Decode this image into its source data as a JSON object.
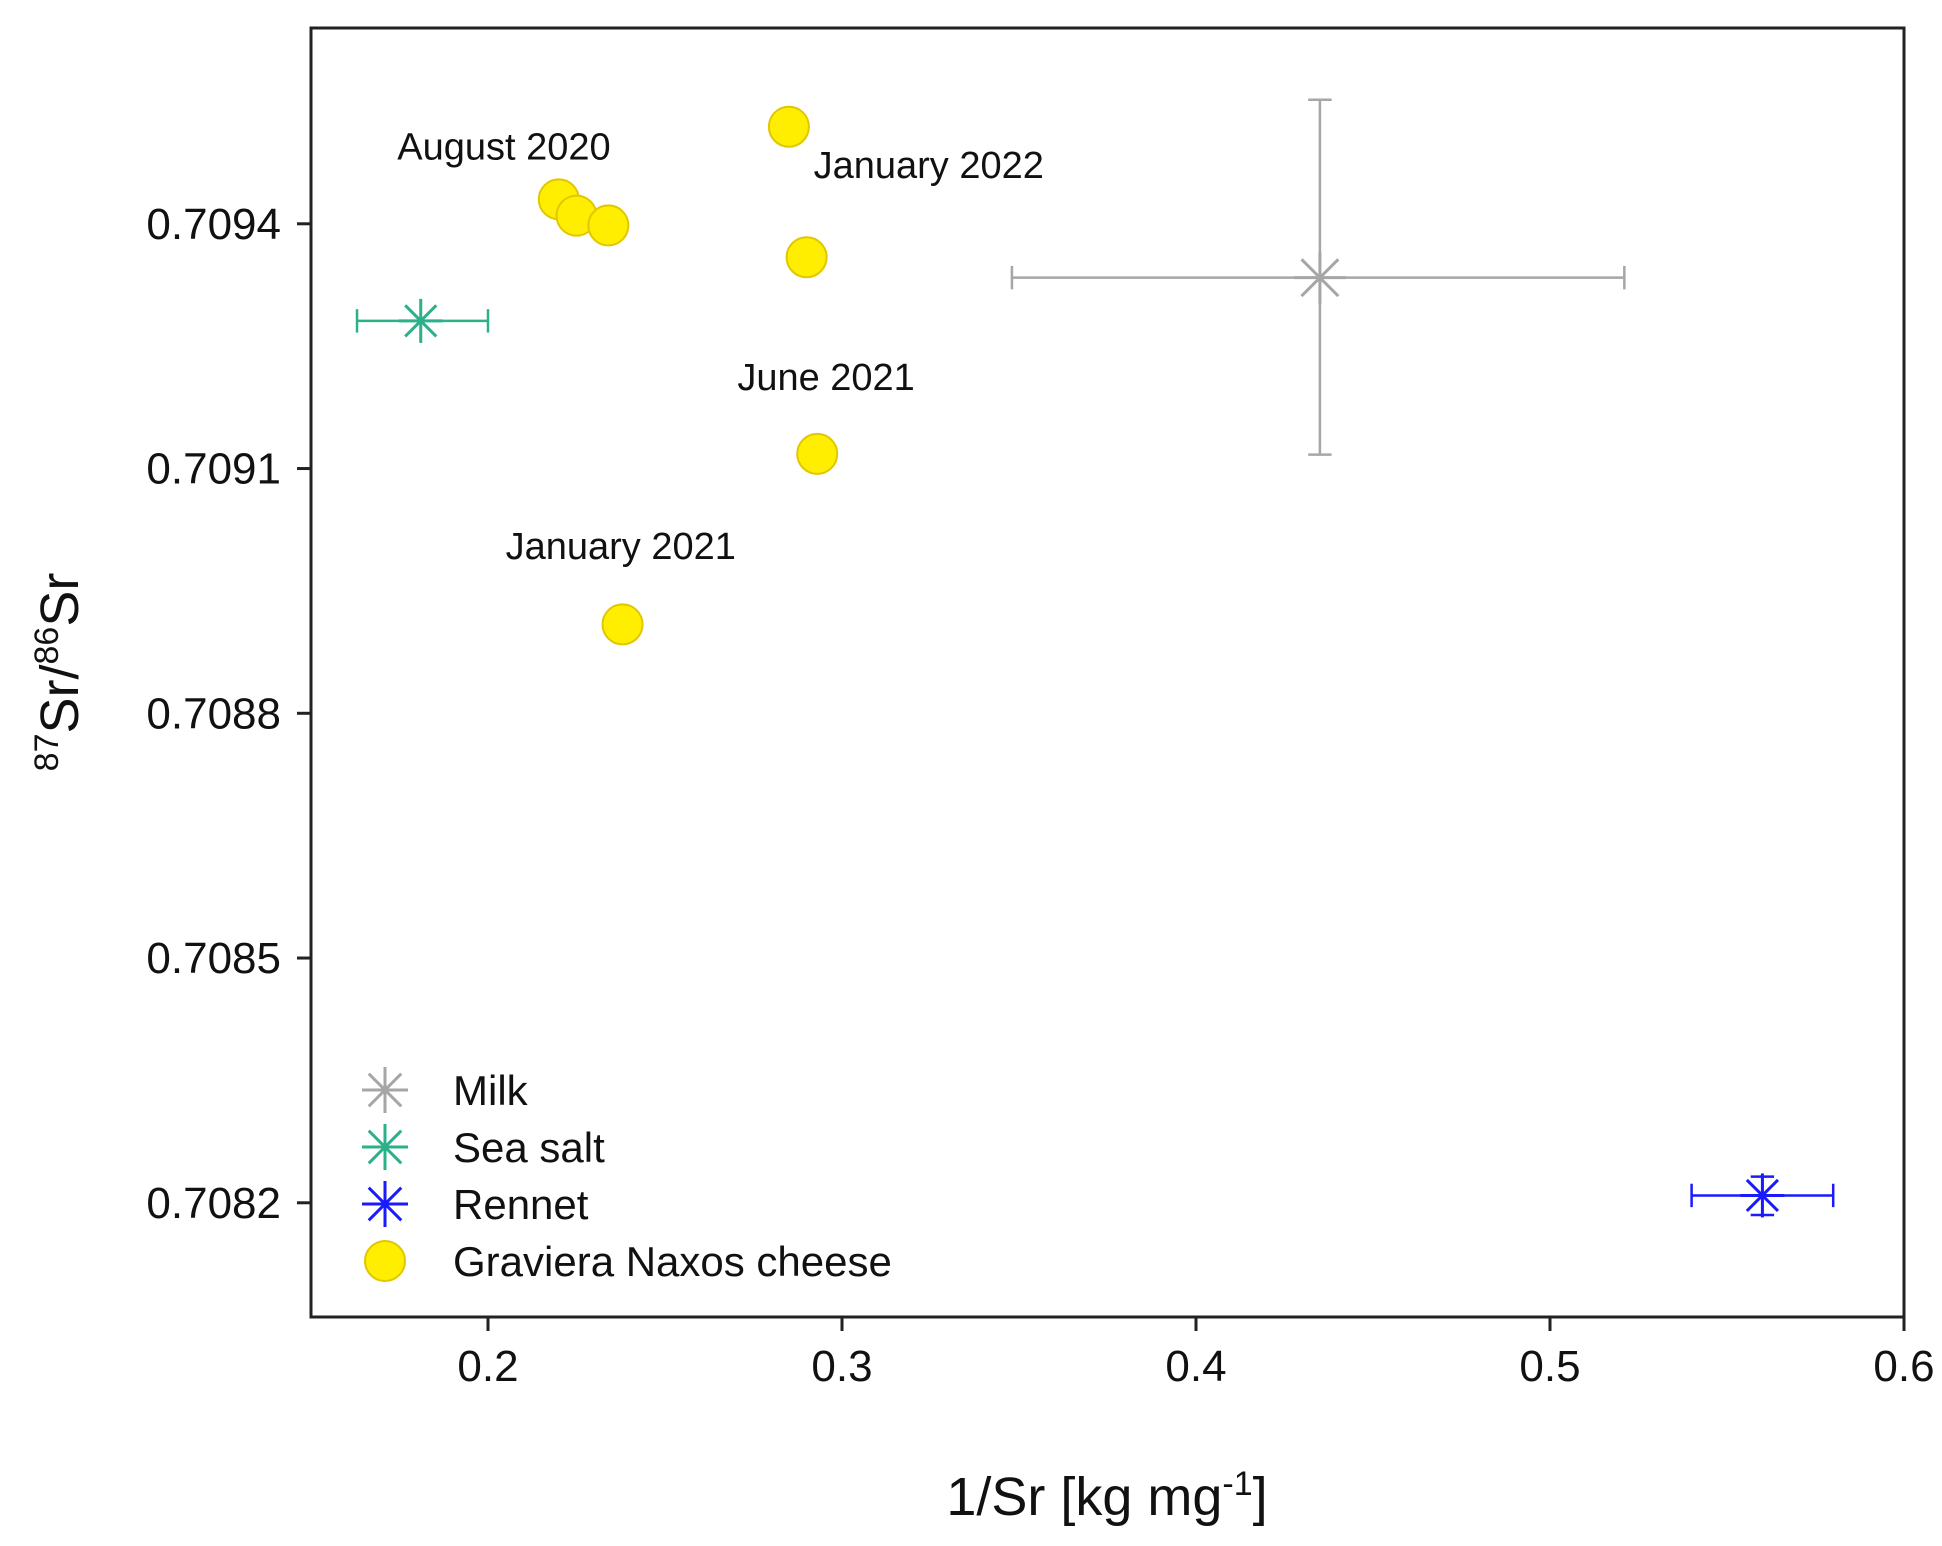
{
  "chart_data": {
    "type": "scatter",
    "xlabel": "1/Sr [kg mg-1]",
    "ylabel": "87Sr/86Sr",
    "xlim": [
      0.15,
      0.6
    ],
    "ylim": [
      0.70806,
      0.70964
    ],
    "xticks": [
      0.2,
      0.3,
      0.4,
      0.5,
      0.6
    ],
    "xtick_labels": [
      "0.2",
      "0.3",
      "0.4",
      "0.5",
      "0.6"
    ],
    "yticks": [
      0.7082,
      0.7085,
      0.7088,
      0.7091,
      0.7094
    ],
    "ytick_labels": [
      "0.7082",
      "0.7085",
      "0.7088",
      "0.7091",
      "0.7094"
    ],
    "series": [
      {
        "name": "Milk",
        "marker": "asterisk",
        "color": "#a6a6a6",
        "points": [
          {
            "x": 0.435,
            "y": 0.709334,
            "xerr": [
              0.348,
              0.521
            ],
            "yerr": [
              0.709117,
              0.709552
            ]
          }
        ]
      },
      {
        "name": "Sea salt",
        "marker": "asterisk",
        "color": "#2bb08a",
        "points": [
          {
            "x": 0.181,
            "y": 0.709281,
            "xerr": [
              0.163,
              0.2
            ],
            "yerr": null
          }
        ]
      },
      {
        "name": "Rennet",
        "marker": "asterisk",
        "color": "#1a1aff",
        "points": [
          {
            "x": 0.56,
            "y": 0.708209,
            "xerr": [
              0.54,
              0.58
            ],
            "yerr": [
              0.708185,
              0.708232
            ]
          }
        ]
      },
      {
        "name": "Graviera Naxos cheese",
        "marker": "circle",
        "color": "#ffee00",
        "edge": "#e0c800",
        "points": [
          {
            "x": 0.22,
            "y": 0.70943
          },
          {
            "x": 0.225,
            "y": 0.70941
          },
          {
            "x": 0.234,
            "y": 0.709398
          },
          {
            "x": 0.285,
            "y": 0.709519
          },
          {
            "x": 0.29,
            "y": 0.709359
          },
          {
            "x": 0.293,
            "y": 0.709118
          },
          {
            "x": 0.238,
            "y": 0.708909
          }
        ]
      }
    ],
    "annotations": [
      {
        "text": "August 2020",
        "x": 0.2045,
        "y": 0.709479
      },
      {
        "text": "January 2022",
        "x": 0.3245,
        "y": 0.709456
      },
      {
        "text": "June 2021",
        "x": 0.2955,
        "y": 0.709196
      },
      {
        "text": "January 2021",
        "x": 0.2375,
        "y": 0.708989
      }
    ],
    "legend": {
      "position": "bottom-left",
      "entries": [
        "Milk",
        "Sea salt",
        "Rennet",
        "Graviera Naxos cheese"
      ]
    }
  }
}
